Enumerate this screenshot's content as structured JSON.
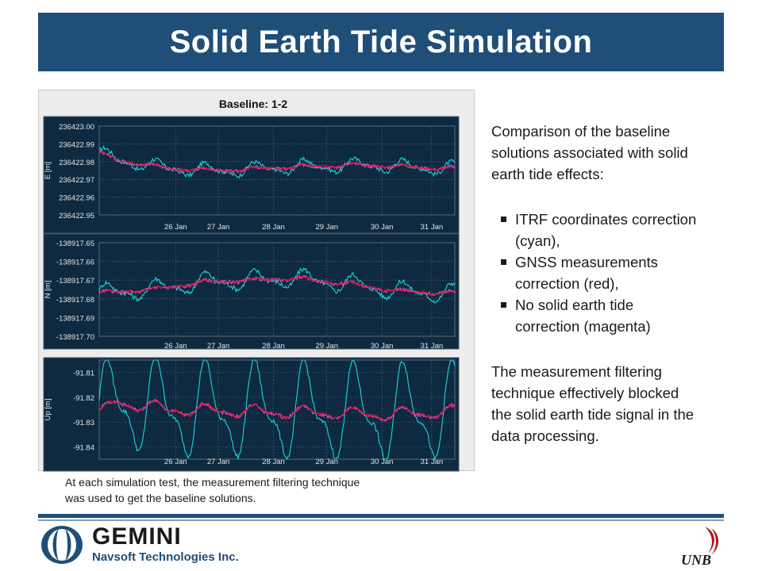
{
  "title": "Solid Earth Tide Simulation",
  "chart_data": {
    "title": "Baseline: 1-2",
    "type": "line",
    "x_ticks": [
      "26 Jan",
      "27 Jan",
      "28 Jan",
      "29 Jan",
      "30 Jan",
      "31 Jan"
    ],
    "series_colors": {
      "itrf": "#19d6d9",
      "gnss": "#e0123a",
      "none": "#e060e0"
    },
    "panels": [
      {
        "ylabel": "E [m]",
        "ylim": [
          236422.95,
          236423.0
        ],
        "yticks": [
          "236423.00",
          "236422.99",
          "236422.98",
          "236422.97",
          "236422.96",
          "236422.95"
        ],
        "itrf_amp": 0.003,
        "tide_amp": 0.0008,
        "trend": [
          [
            0,
            236422.985
          ],
          [
            0.05,
            236422.981
          ],
          [
            0.2,
            236422.976
          ],
          [
            0.35,
            236422.975
          ],
          [
            0.55,
            236422.977
          ],
          [
            0.75,
            236422.978
          ],
          [
            1,
            236422.976
          ]
        ]
      },
      {
        "ylabel": "N [m]",
        "ylim": [
          -138917.7,
          -138917.65
        ],
        "yticks": [
          "-138917.65",
          "-138917.66",
          "-138917.67",
          "-138917.68",
          "-138917.69",
          "-138917.70"
        ],
        "itrf_amp": 0.004,
        "tide_amp": 0.0008,
        "trend": [
          [
            0,
            -138917.677
          ],
          [
            0.15,
            -138917.675
          ],
          [
            0.3,
            -138917.671
          ],
          [
            0.45,
            -138917.67
          ],
          [
            0.55,
            -138917.669
          ],
          [
            0.7,
            -138917.672
          ],
          [
            0.85,
            -138917.676
          ],
          [
            1,
            -138917.677
          ]
        ]
      },
      {
        "ylabel": "Up [m]",
        "ylim": [
          -91.845,
          -91.805
        ],
        "yticks": [
          "-91.81",
          "-91.82",
          "-91.83",
          "-91.84"
        ],
        "itrf_amp": 0.016,
        "tide_amp": 0.002,
        "trend": [
          [
            0,
            -91.827
          ],
          [
            0.05,
            -91.822
          ],
          [
            0.2,
            -91.825
          ],
          [
            0.5,
            -91.826
          ],
          [
            0.8,
            -91.827
          ],
          [
            1,
            -91.826
          ]
        ]
      }
    ]
  },
  "caption": {
    "line1": "At each simulation test, the measurement filtering technique",
    "line2": "was used to get the baseline solutions."
  },
  "side": {
    "intro": [
      "Comparison of the baseline",
      "solutions associated with solid",
      "earth tide effects:"
    ],
    "bullets": [
      [
        "ITRF coordinates correction",
        "(cyan),"
      ],
      [
        "GNSS measurements",
        "correction (red),"
      ],
      [
        "No solid earth tide",
        "correction (magenta)"
      ]
    ],
    "outro": [
      "The measurement filtering",
      "technique effectively blocked",
      "the solid earth tide signal in the",
      "data processing."
    ]
  },
  "footer": {
    "brand": "GEMINI",
    "company": "Navsoft Technologies Inc.",
    "logo_right": "UNB"
  },
  "colors": {
    "banner": "#1f4e79",
    "plot_bg": "#0d2a40"
  }
}
